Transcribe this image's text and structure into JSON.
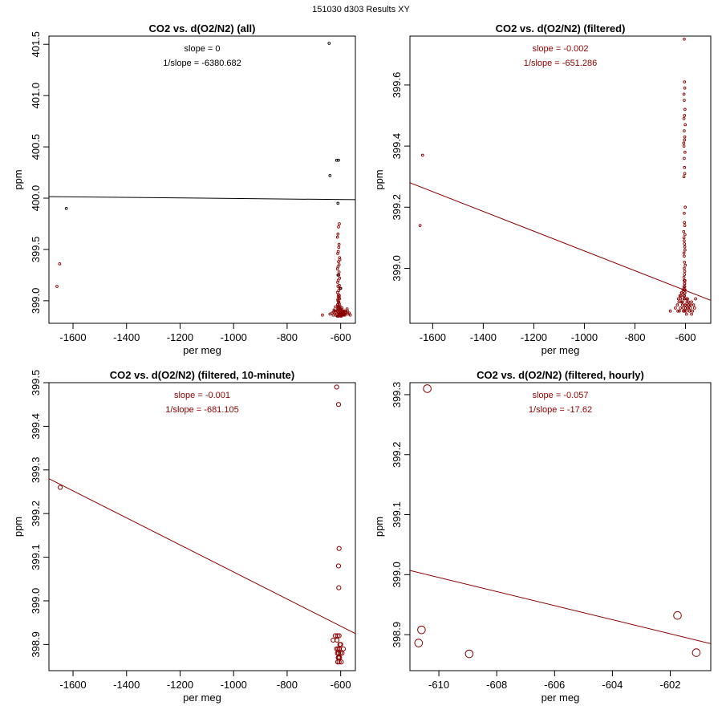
{
  "page_title": "151030   d303   Results XY",
  "colors": {
    "black": "#000000",
    "red": "#8b0000"
  },
  "chart_data": [
    {
      "type": "scatter",
      "title": "CO2 vs. d(O2/N2) (all)",
      "xlabel": "per meg",
      "ylabel": "ppm",
      "xlim": [
        -1690,
        -545
      ],
      "ylim": [
        398.78,
        401.58
      ],
      "xticks": [
        -1600,
        -1400,
        -1200,
        -1000,
        -800,
        -600
      ],
      "yticks": [
        399.0,
        399.5,
        400.0,
        400.5,
        401.0,
        401.5
      ],
      "ytick_labels": [
        "399.0",
        "399.5",
        "400.0",
        "400.5",
        "401.0",
        "401.5"
      ],
      "annotations": [
        "slope = 0",
        "1/slope = -6380.682"
      ],
      "annotation_color": "#000000",
      "marker_size": "small",
      "fit_line": {
        "color": "#000000",
        "x": [
          -1690,
          -545
        ],
        "y": [
          400.015,
          399.985
        ]
      },
      "series": [
        {
          "name": "black",
          "color": "#000000",
          "x": [
            -643,
            -608,
            -615,
            -640,
            -610,
            -1625,
            -600,
            -608,
            -590,
            -610
          ],
          "y": [
            401.51,
            400.37,
            400.37,
            400.22,
            399.95,
            399.9,
            399.12,
            398.85,
            398.87,
            399.25
          ]
        },
        {
          "name": "filtered",
          "color": "#8b0000",
          "x": [
            -1650,
            -1660,
            -668,
            -640,
            -632,
            -626,
            -620,
            -615,
            -612,
            -610,
            -608,
            -606,
            -605,
            -604,
            -603,
            -602,
            -601,
            -600,
            -599,
            -598,
            -597,
            -596,
            -595,
            -594,
            -593,
            -592,
            -590,
            -588,
            -586,
            -584,
            -580,
            -576,
            -572,
            -568,
            -564,
            -575,
            -605,
            -608,
            -610,
            -612,
            -606,
            -607,
            -609,
            -611,
            -604,
            -603,
            -608,
            -606,
            -610,
            -612,
            -606,
            -607,
            -604,
            -609,
            -611,
            -605,
            -610,
            -603,
            -607,
            -612,
            -608,
            -605,
            -609,
            -606,
            -604,
            -611,
            -610,
            -607,
            -608,
            -605,
            -612,
            -603,
            -606,
            -609,
            -604,
            -610,
            -598,
            -596,
            -602,
            -600,
            -594,
            -597,
            -601,
            -599,
            -595,
            -593,
            -618,
            -622,
            -625,
            -615,
            -628,
            -632,
            -620,
            -590,
            -585,
            -588,
            -582,
            -613,
            -611,
            -609
          ],
          "y": [
            399.36,
            399.14,
            398.86,
            398.87,
            398.88,
            398.89,
            398.86,
            398.87,
            398.9,
            398.85,
            398.88,
            398.87,
            398.86,
            398.89,
            398.88,
            398.87,
            398.85,
            398.86,
            398.9,
            398.88,
            398.87,
            398.86,
            398.89,
            398.88,
            398.87,
            398.86,
            398.9,
            398.88,
            398.87,
            398.86,
            398.89,
            398.92,
            398.87,
            398.88,
            398.86,
            398.9,
            399.75,
            399.72,
            399.65,
            399.62,
            399.55,
            399.52,
            399.48,
            399.46,
            399.42,
            399.4,
            399.38,
            399.35,
            399.33,
            399.31,
            399.28,
            399.25,
            399.22,
            399.2,
            399.18,
            399.15,
            399.14,
            399.12,
            399.1,
            399.08,
            399.06,
            399.05,
            399.04,
            399.03,
            399.02,
            399.01,
            399.0,
            398.99,
            398.98,
            398.97,
            398.96,
            398.95,
            398.94,
            398.93,
            398.92,
            398.91,
            398.9,
            398.89,
            398.88,
            398.87,
            398.86,
            398.85,
            398.91,
            398.92,
            398.93,
            398.88,
            398.89,
            398.9,
            398.91,
            398.87,
            398.86,
            398.88,
            398.94,
            398.89,
            398.9,
            398.86,
            398.88,
            398.85,
            398.92,
            398.95
          ]
        }
      ]
    },
    {
      "type": "scatter",
      "title": "CO2 vs. d(O2/N2) (filtered)",
      "xlabel": "per meg",
      "ylabel": "ppm",
      "xlim": [
        -1690,
        -500
      ],
      "ylim": [
        398.82,
        399.76
      ],
      "xticks": [
        -1600,
        -1400,
        -1200,
        -1000,
        -800,
        -600
      ],
      "yticks": [
        399.0,
        399.2,
        399.4,
        399.6
      ],
      "ytick_labels": [
        "399.0",
        "399.2",
        "399.4",
        "399.6"
      ],
      "annotations": [
        "slope = -0.002",
        "1/slope = -651.286"
      ],
      "annotation_color": "#8b0000",
      "marker_size": "small",
      "fit_line": {
        "color": "#8b0000",
        "x": [
          -1690,
          -500
        ],
        "y": [
          399.28,
          398.895
        ]
      },
      "series": [
        {
          "name": "filtered",
          "color": "#8b0000",
          "x": [
            -1640,
            -1650,
            -605,
            -604,
            -603,
            -606,
            -605,
            -602,
            -604,
            -606,
            -601,
            -605,
            -603,
            -604,
            -607,
            -606,
            -602,
            -605,
            -604,
            -603,
            -606,
            -601,
            -605,
            -604,
            -603,
            -607,
            -602,
            -606,
            -605,
            -604,
            -603,
            -602,
            -606,
            -605,
            -604,
            -601,
            -605,
            -603,
            -604,
            -606,
            -602,
            -605,
            -604,
            -603,
            -606,
            -605,
            -604,
            -602,
            -603,
            -605,
            -606,
            -604,
            -605,
            -603,
            -602,
            -604,
            -660,
            -640,
            -632,
            -628,
            -624,
            -620,
            -616,
            -612,
            -608,
            -600,
            -596,
            -592,
            -588,
            -584,
            -580,
            -576,
            -572,
            -568,
            -564,
            -560,
            -618,
            -612,
            -608,
            -604,
            -600,
            -596,
            -592,
            -588,
            -584,
            -580,
            -576,
            -614,
            -610,
            -606,
            -602,
            -598,
            -594,
            -590,
            -586,
            -622,
            -626,
            -630,
            -620,
            -616
          ],
          "y": [
            399.37,
            399.14,
            399.75,
            399.61,
            399.59,
            399.57,
            399.55,
            399.52,
            399.5,
            399.49,
            399.47,
            399.45,
            399.43,
            399.42,
            399.41,
            399.4,
            399.38,
            399.36,
            399.33,
            399.31,
            399.3,
            399.2,
            399.18,
            399.15,
            399.14,
            399.12,
            399.11,
            399.1,
            399.09,
            399.08,
            399.07,
            399.06,
            399.05,
            399.04,
            399.02,
            399.01,
            399.0,
            398.99,
            398.98,
            398.97,
            398.96,
            398.96,
            398.95,
            398.94,
            398.94,
            398.93,
            398.93,
            398.92,
            398.92,
            398.91,
            398.91,
            398.9,
            398.9,
            398.95,
            398.93,
            398.91,
            398.86,
            398.87,
            398.88,
            398.9,
            398.86,
            398.87,
            398.89,
            398.88,
            398.86,
            398.87,
            398.85,
            398.9,
            398.88,
            398.86,
            398.87,
            398.89,
            398.86,
            398.88,
            398.87,
            398.9,
            398.91,
            398.89,
            398.87,
            398.86,
            398.88,
            398.9,
            398.87,
            398.89,
            398.86,
            398.88,
            398.85,
            398.92,
            398.93,
            398.9,
            398.88,
            398.86,
            398.89,
            398.87,
            398.88,
            398.91,
            398.89,
            398.86,
            398.9,
            398.92
          ]
        }
      ]
    },
    {
      "type": "scatter",
      "title": "CO2 vs. d(O2/N2) (filtered, 10-minute)",
      "xlabel": "per meg",
      "ylabel": "ppm",
      "xlim": [
        -1690,
        -545
      ],
      "ylim": [
        398.84,
        399.5
      ],
      "xticks": [
        -1600,
        -1400,
        -1200,
        -1000,
        -800,
        -600
      ],
      "yticks": [
        398.9,
        399.0,
        399.1,
        399.2,
        399.3,
        399.4,
        399.5
      ],
      "ytick_labels": [
        "398.9",
        "399.0",
        "399.1",
        "399.2",
        "399.3",
        "399.4",
        "399.5"
      ],
      "annotations": [
        "slope = -0.001",
        "1/slope = -681.105"
      ],
      "annotation_color": "#8b0000",
      "marker_size": "medium",
      "fit_line": {
        "color": "#8b0000",
        "x": [
          -1690,
          -545
        ],
        "y": [
          399.28,
          398.925
        ]
      },
      "series": [
        {
          "name": "10-minute",
          "color": "#8b0000",
          "x": [
            -1648,
            -615,
            -608,
            -606,
            -608,
            -607,
            -620,
            -612,
            -606,
            -628,
            -614,
            -600,
            -603,
            -610,
            -615,
            -590,
            -605,
            -608,
            -612,
            -595,
            -602,
            -609,
            -604,
            -607,
            -611,
            -598,
            -606
          ],
          "y": [
            399.26,
            399.49,
            399.45,
            399.12,
            399.08,
            399.03,
            398.92,
            398.92,
            398.92,
            398.91,
            398.91,
            398.9,
            398.9,
            398.89,
            398.89,
            398.89,
            398.89,
            398.88,
            398.88,
            398.88,
            398.88,
            398.87,
            398.87,
            398.87,
            398.86,
            398.86,
            398.86
          ]
        }
      ]
    },
    {
      "type": "scatter",
      "title": "CO2 vs. d(O2/N2) (filtered, hourly)",
      "xlabel": "per meg",
      "ylabel": "ppm",
      "xlim": [
        -611,
        -600.6
      ],
      "ylim": [
        398.84,
        399.32
      ],
      "xticks": [
        -610,
        -608,
        -606,
        -604,
        -602
      ],
      "yticks": [
        398.9,
        399.0,
        399.1,
        399.2,
        399.3
      ],
      "ytick_labels": [
        "398.9",
        "399.0",
        "399.1",
        "399.2",
        "399.3"
      ],
      "annotations": [
        "slope = -0.057",
        "1/slope = -17.62"
      ],
      "annotation_color": "#8b0000",
      "marker_size": "large",
      "fit_line": {
        "color": "#8b0000",
        "x": [
          -611,
          -600.6
        ],
        "y": [
          399.007,
          398.885
        ]
      },
      "series": [
        {
          "name": "hourly",
          "color": "#8b0000",
          "x": [
            -610.4,
            -610.6,
            -610.7,
            -608.95,
            -601.75,
            -601.1
          ],
          "y": [
            399.31,
            398.908,
            398.886,
            398.868,
            398.932,
            398.87
          ]
        }
      ]
    }
  ]
}
